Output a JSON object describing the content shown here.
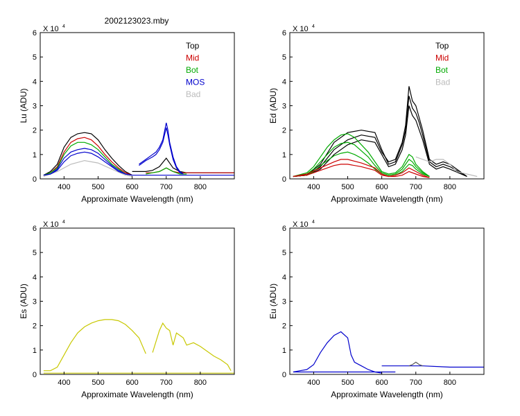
{
  "figure_title": "2002123023.mby",
  "chart_data": [
    {
      "id": "lu",
      "type": "line",
      "ylabel": "Lu (ADU)",
      "xlabel": "Approximate Wavelength (nm)",
      "xlim": [
        330,
        900
      ],
      "ylim": [
        0,
        6
      ],
      "y_multiplier": "X 10",
      "y_multiplier_exp": "4",
      "x_ticks": [
        400,
        500,
        600,
        700,
        800
      ],
      "y_ticks": [
        0,
        1,
        2,
        3,
        4,
        5,
        6
      ],
      "legend": [
        {
          "label": "Top",
          "color": "#000000"
        },
        {
          "label": "Mid",
          "color": "#cc0000"
        },
        {
          "label": "Bot",
          "color": "#00aa00"
        },
        {
          "label": "MOS",
          "color": "#0000cc"
        },
        {
          "label": "Bad",
          "color": "#bbbbbb"
        }
      ],
      "series": [
        {
          "color": "#000000",
          "x": [
            340,
            360,
            380,
            400,
            420,
            440,
            460,
            480,
            500,
            520,
            540,
            560,
            580,
            600
          ],
          "y": [
            0.15,
            0.3,
            0.6,
            1.3,
            1.7,
            1.85,
            1.9,
            1.85,
            1.6,
            1.2,
            0.85,
            0.55,
            0.3,
            0.15
          ]
        },
        {
          "color": "#000000",
          "x": [
            600,
            640,
            660,
            680,
            700,
            720,
            740,
            760,
            800,
            850,
            900
          ],
          "y": [
            0.3,
            0.3,
            0.35,
            0.5,
            0.85,
            0.45,
            0.3,
            0.25,
            0.25,
            0.25,
            0.25
          ]
        },
        {
          "color": "#cc0000",
          "x": [
            340,
            360,
            380,
            400,
            420,
            440,
            460,
            480,
            500,
            520,
            540,
            560,
            580,
            600
          ],
          "y": [
            0.15,
            0.25,
            0.5,
            1.1,
            1.5,
            1.65,
            1.7,
            1.6,
            1.35,
            1.0,
            0.7,
            0.45,
            0.25,
            0.15
          ]
        },
        {
          "color": "#cc0000",
          "x": [
            640,
            660,
            680,
            700,
            720,
            740,
            800,
            850,
            900
          ],
          "y": [
            0.25,
            0.25,
            0.3,
            0.45,
            0.3,
            0.25,
            0.25,
            0.25,
            0.25
          ]
        },
        {
          "color": "#00aa00",
          "x": [
            340,
            360,
            380,
            400,
            420,
            440,
            460,
            480,
            500,
            520,
            540,
            560,
            580,
            600
          ],
          "y": [
            0.15,
            0.25,
            0.45,
            1.0,
            1.35,
            1.5,
            1.5,
            1.4,
            1.2,
            0.9,
            0.6,
            0.4,
            0.2,
            0.15
          ]
        },
        {
          "color": "#00aa00",
          "x": [
            640,
            660,
            680,
            700,
            720,
            740,
            760
          ],
          "y": [
            0.2,
            0.25,
            0.3,
            0.45,
            0.3,
            0.2,
            0.2
          ]
        },
        {
          "color": "#bbbbbb",
          "x": [
            340,
            380,
            420,
            460,
            500,
            540,
            580,
            600
          ],
          "y": [
            0.1,
            0.3,
            0.6,
            0.75,
            0.65,
            0.4,
            0.15,
            0.1
          ]
        },
        {
          "color": "#0000cc",
          "x": [
            340,
            360,
            380,
            400,
            420,
            440,
            460,
            480,
            500,
            520,
            540,
            560,
            580,
            600
          ],
          "y": [
            0.15,
            0.2,
            0.35,
            0.7,
            0.95,
            1.05,
            1.1,
            1.05,
            0.9,
            0.7,
            0.5,
            0.3,
            0.2,
            0.15
          ]
        },
        {
          "color": "#0000cc",
          "x": [
            340,
            360,
            380,
            400,
            420,
            440,
            460,
            480,
            500,
            520,
            540,
            560,
            580,
            600
          ],
          "y": [
            0.15,
            0.2,
            0.4,
            0.85,
            1.1,
            1.2,
            1.25,
            1.2,
            1.05,
            0.8,
            0.55,
            0.35,
            0.2,
            0.15
          ]
        },
        {
          "color": "#0000cc",
          "x": [
            620,
            640,
            660,
            670,
            680,
            690,
            700,
            705,
            710,
            720,
            730,
            740,
            750
          ],
          "y": [
            0.6,
            0.8,
            1.0,
            1.1,
            1.3,
            1.6,
            2.3,
            2.0,
            1.5,
            0.9,
            0.5,
            0.3,
            0.2
          ]
        },
        {
          "color": "#0000cc",
          "x": [
            620,
            640,
            660,
            670,
            680,
            690,
            700,
            705,
            710,
            720,
            730,
            740,
            750
          ],
          "y": [
            0.55,
            0.75,
            0.9,
            1.0,
            1.2,
            1.5,
            2.1,
            1.8,
            1.4,
            0.8,
            0.45,
            0.25,
            0.2
          ]
        },
        {
          "color": "#0000cc",
          "x": [
            600,
            700,
            800,
            900
          ],
          "y": [
            0.15,
            0.15,
            0.15,
            0.15
          ]
        }
      ]
    },
    {
      "id": "ed",
      "type": "line",
      "ylabel": "Ed  (ADU)",
      "xlabel": "Approximate Wavelength (nm)",
      "xlim": [
        330,
        900
      ],
      "ylim": [
        0,
        6
      ],
      "y_multiplier": "X 10",
      "y_multiplier_exp": "4",
      "x_ticks": [
        400,
        500,
        600,
        700,
        800
      ],
      "y_ticks": [
        0,
        1,
        2,
        3,
        4,
        5,
        6
      ],
      "legend": [
        {
          "label": "Top",
          "color": "#000000"
        },
        {
          "label": "Mid",
          "color": "#cc0000"
        },
        {
          "label": "Bot",
          "color": "#00aa00"
        },
        {
          "label": "Bad",
          "color": "#bbbbbb"
        }
      ],
      "series": [
        {
          "color": "#000000",
          "x": [
            340,
            380,
            420,
            460,
            500,
            540,
            580,
            600,
            620,
            640,
            660,
            670,
            680,
            690,
            700,
            710,
            720,
            740,
            760,
            780,
            800,
            850
          ],
          "y": [
            0.1,
            0.15,
            0.5,
            1.2,
            1.6,
            1.8,
            1.7,
            1.1,
            0.7,
            0.8,
            1.5,
            2.2,
            3.8,
            3.2,
            3.0,
            2.5,
            2.0,
            0.8,
            0.6,
            0.7,
            0.6,
            0.1
          ]
        },
        {
          "color": "#000000",
          "x": [
            340,
            380,
            420,
            460,
            500,
            540,
            580,
            600,
            620,
            640,
            660,
            670,
            680,
            690,
            700,
            710,
            720,
            740,
            760,
            780,
            800,
            850
          ],
          "y": [
            0.1,
            0.15,
            0.6,
            1.5,
            1.9,
            2.0,
            1.9,
            1.2,
            0.6,
            0.7,
            1.4,
            2.0,
            3.4,
            2.9,
            2.7,
            2.3,
            1.8,
            0.7,
            0.5,
            0.6,
            0.5,
            0.1
          ]
        },
        {
          "color": "#000000",
          "x": [
            340,
            380,
            420,
            460,
            500,
            540,
            580,
            600,
            620,
            640,
            660,
            670,
            680,
            690,
            700,
            710,
            720,
            740,
            760,
            780,
            800,
            850
          ],
          "y": [
            0.1,
            0.15,
            0.4,
            1.0,
            1.4,
            1.6,
            1.5,
            1.0,
            0.5,
            0.6,
            1.2,
            1.8,
            3.0,
            2.6,
            2.4,
            2.0,
            1.6,
            0.6,
            0.4,
            0.5,
            0.4,
            0.1
          ]
        },
        {
          "color": "#bbbbbb",
          "x": [
            700,
            740,
            760,
            780,
            800,
            820,
            850,
            880
          ],
          "y": [
            0.9,
            0.7,
            0.8,
            0.8,
            0.6,
            0.3,
            0.2,
            0.1
          ]
        },
        {
          "color": "#00aa00",
          "x": [
            340,
            380,
            400,
            420,
            440,
            460,
            480,
            500,
            520,
            540,
            560,
            580,
            600,
            620,
            640,
            660,
            680,
            690,
            700,
            720,
            740
          ],
          "y": [
            0.1,
            0.25,
            0.5,
            0.9,
            1.3,
            1.6,
            1.8,
            1.85,
            1.7,
            1.4,
            1.1,
            0.7,
            0.3,
            0.2,
            0.25,
            0.5,
            1.0,
            0.9,
            0.6,
            0.3,
            0.1
          ]
        },
        {
          "color": "#00aa00",
          "x": [
            340,
            380,
            400,
            420,
            440,
            460,
            480,
            500,
            520,
            540,
            560,
            580,
            600,
            620,
            640,
            660,
            680,
            690,
            700,
            720,
            740
          ],
          "y": [
            0.1,
            0.2,
            0.4,
            0.7,
            1.0,
            1.3,
            1.45,
            1.5,
            1.4,
            1.15,
            0.9,
            0.55,
            0.25,
            0.15,
            0.2,
            0.4,
            0.8,
            0.7,
            0.5,
            0.25,
            0.1
          ]
        },
        {
          "color": "#00aa00",
          "x": [
            340,
            380,
            400,
            420,
            440,
            460,
            480,
            500,
            520,
            540,
            560,
            580,
            600,
            620,
            640,
            660,
            680,
            690,
            700,
            720,
            740
          ],
          "y": [
            0.1,
            0.15,
            0.3,
            0.55,
            0.75,
            0.95,
            1.05,
            1.1,
            1.0,
            0.85,
            0.65,
            0.4,
            0.2,
            0.1,
            0.15,
            0.3,
            0.6,
            0.55,
            0.4,
            0.2,
            0.1
          ]
        },
        {
          "color": "#cc0000",
          "x": [
            340,
            380,
            420,
            460,
            480,
            500,
            540,
            580,
            600,
            620,
            640,
            660,
            680,
            700,
            720,
            740
          ],
          "y": [
            0.1,
            0.15,
            0.35,
            0.55,
            0.6,
            0.6,
            0.5,
            0.35,
            0.15,
            0.1,
            0.1,
            0.15,
            0.3,
            0.2,
            0.1,
            0.05
          ]
        },
        {
          "color": "#cc0000",
          "x": [
            340,
            380,
            420,
            460,
            480,
            500,
            540,
            580,
            600,
            620,
            640,
            660,
            680,
            700,
            720,
            740
          ],
          "y": [
            0.1,
            0.2,
            0.45,
            0.7,
            0.8,
            0.8,
            0.65,
            0.45,
            0.2,
            0.1,
            0.15,
            0.25,
            0.45,
            0.3,
            0.15,
            0.05
          ]
        }
      ]
    },
    {
      "id": "es",
      "type": "line",
      "ylabel": "Es  (ADU)",
      "xlabel": "Approximate Wavelength (nm)",
      "xlim": [
        330,
        900
      ],
      "ylim": [
        0,
        6
      ],
      "y_multiplier": "X 10",
      "y_multiplier_exp": "4",
      "x_ticks": [
        400,
        500,
        600,
        700,
        800
      ],
      "y_ticks": [
        0,
        1,
        2,
        3,
        4,
        5,
        6
      ],
      "series": [
        {
          "color": "#c8c800",
          "x": [
            340,
            360,
            380,
            400,
            420,
            440,
            460,
            480,
            500,
            520,
            540,
            560,
            580,
            600,
            620,
            640
          ],
          "y": [
            0.15,
            0.15,
            0.3,
            0.8,
            1.3,
            1.7,
            1.95,
            2.1,
            2.2,
            2.25,
            2.25,
            2.2,
            2.05,
            1.8,
            1.5,
            0.85
          ]
        },
        {
          "color": "#c8c800",
          "x": [
            660,
            680,
            690,
            700,
            710,
            720,
            730,
            740,
            750,
            760,
            780,
            800,
            820,
            840,
            860,
            880,
            890
          ],
          "y": [
            0.9,
            1.8,
            2.1,
            1.9,
            1.8,
            1.2,
            1.7,
            1.6,
            1.5,
            1.2,
            1.3,
            1.15,
            0.95,
            0.75,
            0.6,
            0.4,
            0.15
          ]
        },
        {
          "color": "#c8c800",
          "x": [
            340,
            600,
            900
          ],
          "y": [
            0.05,
            0.05,
            0.05
          ]
        }
      ]
    },
    {
      "id": "eu",
      "type": "line",
      "ylabel": "Eu  (ADU)",
      "xlabel": "Approximate Wavelength (nm)",
      "xlim": [
        330,
        900
      ],
      "ylim": [
        0,
        6
      ],
      "y_multiplier": "X 10",
      "y_multiplier_exp": "4",
      "x_ticks": [
        400,
        500,
        600,
        700,
        800
      ],
      "y_ticks": [
        0,
        1,
        2,
        3,
        4,
        5,
        6
      ],
      "series": [
        {
          "color": "#0000cc",
          "x": [
            340,
            360,
            380,
            400,
            420,
            440,
            460,
            480,
            500,
            510,
            520,
            540,
            560,
            580,
            600
          ],
          "y": [
            0.1,
            0.15,
            0.2,
            0.4,
            0.9,
            1.3,
            1.6,
            1.75,
            1.5,
            0.8,
            0.5,
            0.35,
            0.2,
            0.1,
            0.05
          ]
        },
        {
          "color": "#0000cc",
          "x": [
            340,
            640
          ],
          "y": [
            0.1,
            0.1
          ]
        },
        {
          "color": "#0000cc",
          "x": [
            600,
            680,
            700,
            720,
            800,
            900
          ],
          "y": [
            0.35,
            0.35,
            0.35,
            0.35,
            0.3,
            0.3
          ]
        },
        {
          "color": "#555555",
          "x": [
            680,
            690,
            700,
            710,
            720
          ],
          "y": [
            0.35,
            0.4,
            0.5,
            0.4,
            0.35
          ]
        }
      ]
    }
  ]
}
